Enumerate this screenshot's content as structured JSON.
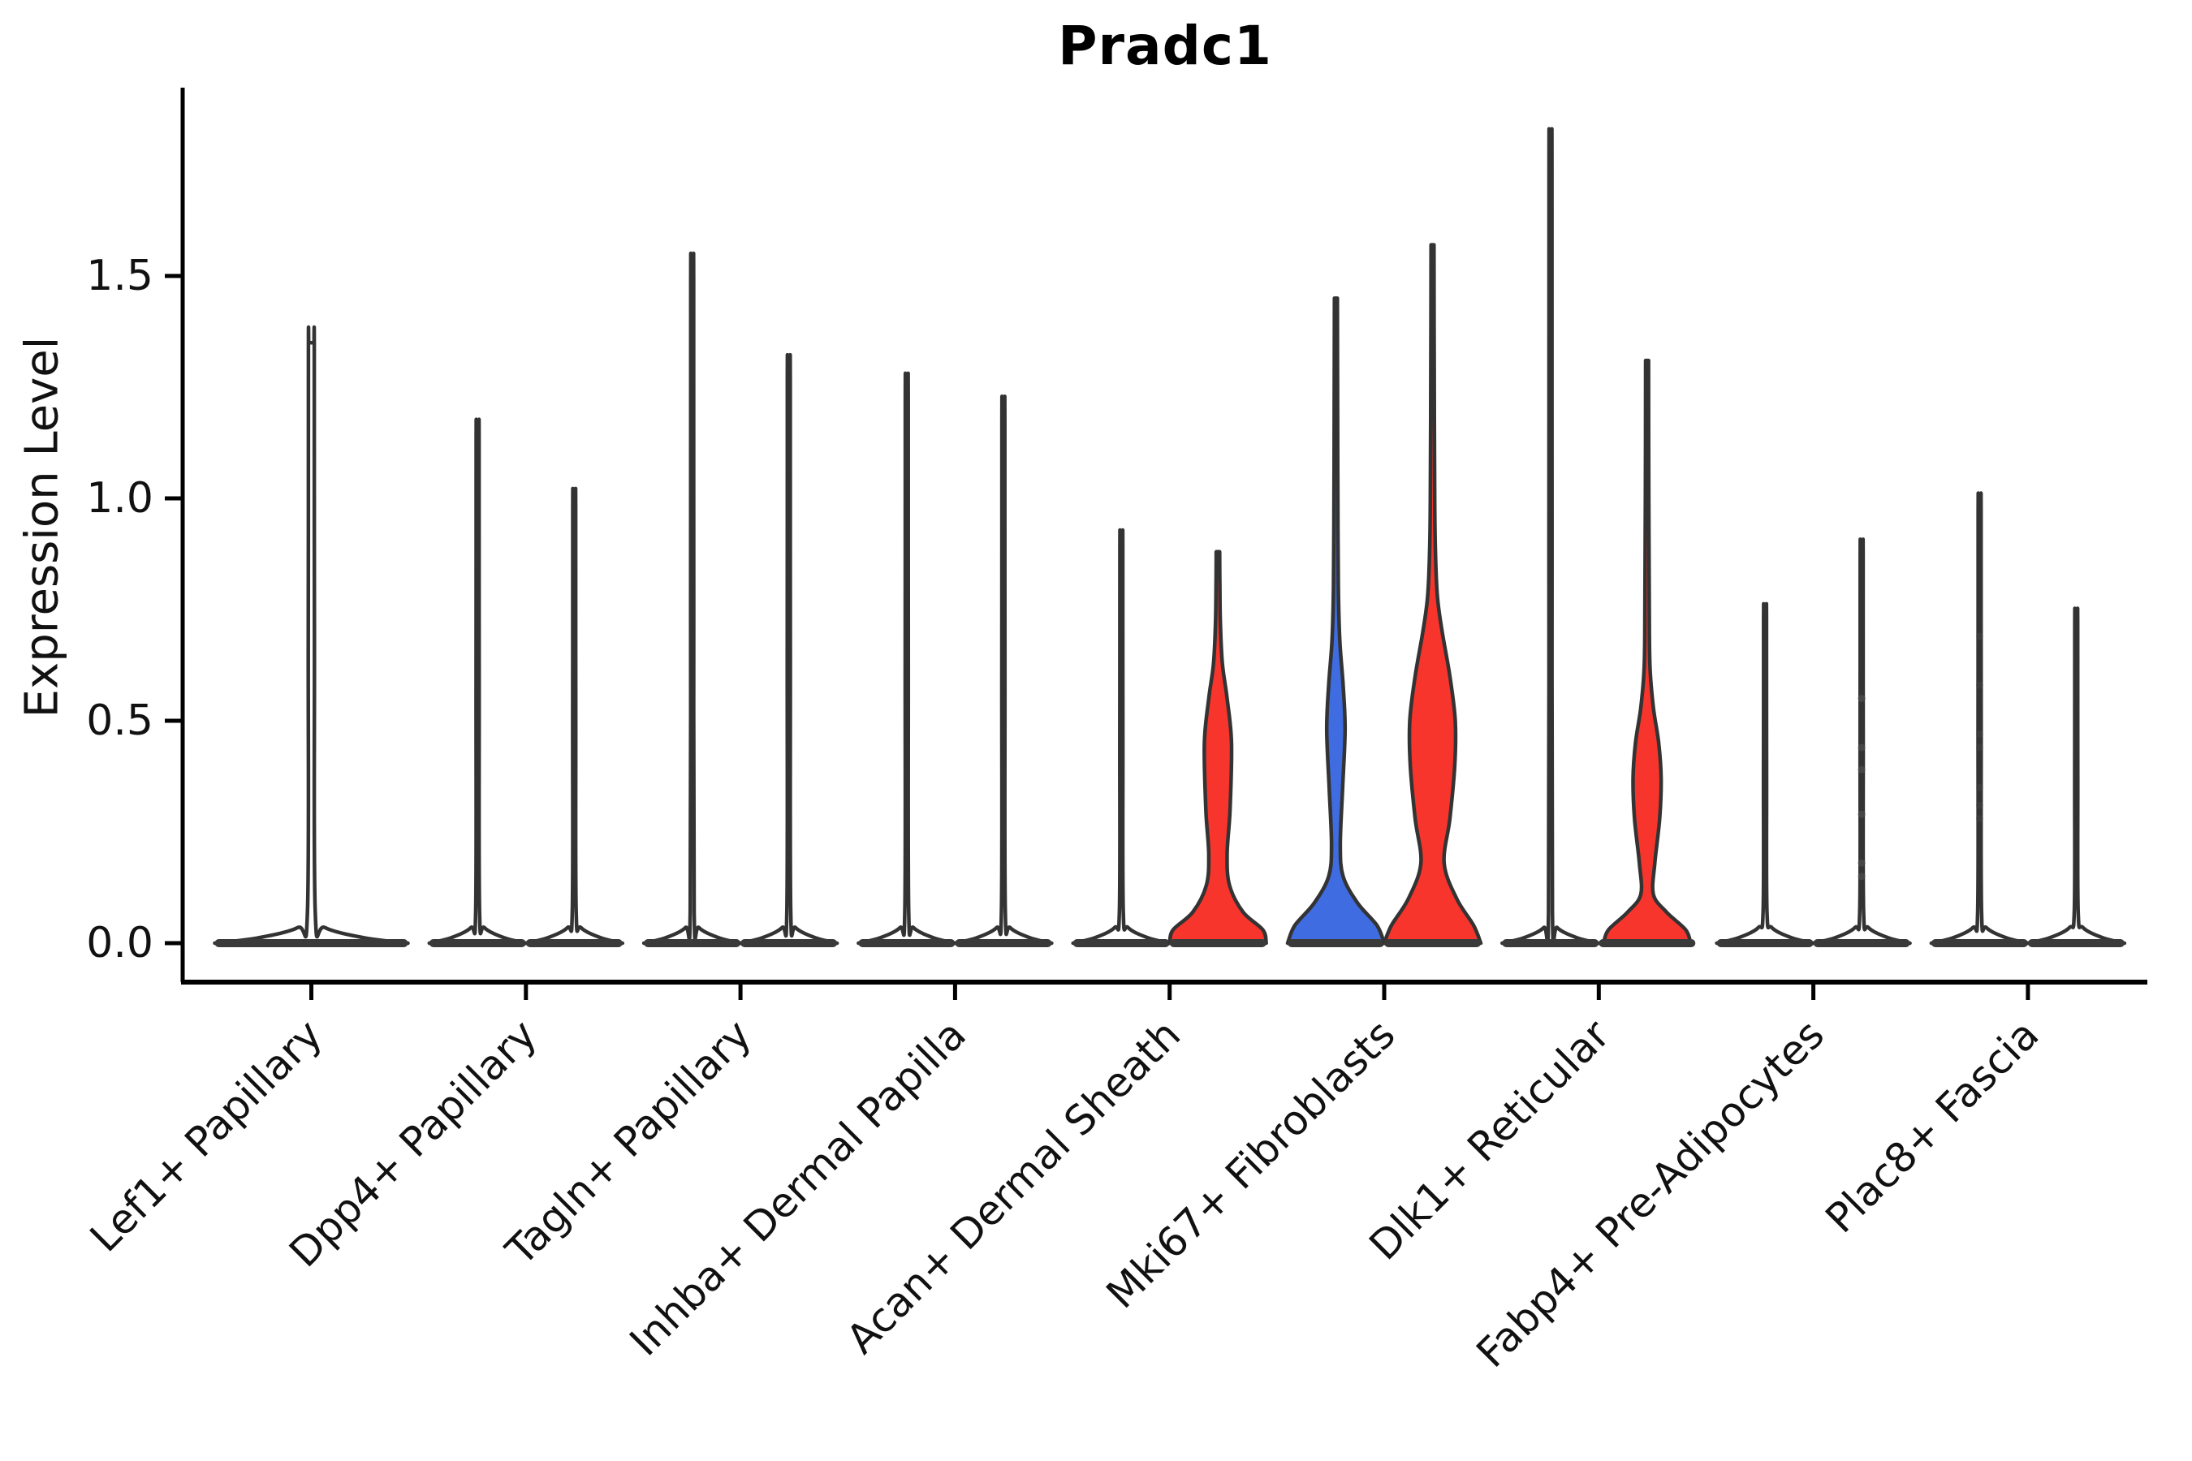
{
  "title": "Pradc1",
  "y_axis": {
    "label": "Expression Level",
    "tick_labels": [
      "0.0",
      "0.5",
      "1.0",
      "1.5"
    ],
    "tick_values": [
      0.0,
      0.5,
      1.0,
      1.5
    ],
    "range": [
      -0.09,
      1.92
    ]
  },
  "colors": {
    "red": "#f8352c",
    "blue": "#3f6ce0",
    "outline": "#333333",
    "base_bar": "#3a3a3a",
    "point": "#4a4a4a",
    "text": "#111111",
    "background": "#ffffff"
  },
  "chart_data": {
    "type": "violin",
    "title": "Pradc1",
    "xlabel": "",
    "ylabel": "Expression Level",
    "ylim": [
      -0.09,
      1.92
    ],
    "yticks": [
      0.0,
      0.5,
      1.0,
      1.5
    ],
    "grid": false,
    "legend": "none",
    "categories": [
      "Lef1+ Papillary",
      "Dpp4+ Papillary",
      "Tagln+ Papillary",
      "Inhba+ Dermal Papilla",
      "Acan+ Dermal Sheath",
      "Mki67+ Fibroblasts",
      "Dlk1+ Reticular",
      "Fabp4+ Pre-Adipocytes",
      "Plac8+ Fascia"
    ],
    "violins": [
      {
        "category": "Lef1+ Papillary",
        "side": "single",
        "fill": "none",
        "max": 1.35
      },
      {
        "category": "Dpp4+ Papillary",
        "side": "left",
        "fill": "none",
        "max": 1.15
      },
      {
        "category": "Dpp4+ Papillary",
        "side": "right",
        "fill": "none",
        "max": 1.0
      },
      {
        "category": "Tagln+ Papillary",
        "side": "left",
        "fill": "none",
        "max": 1.51
      },
      {
        "category": "Tagln+ Papillary",
        "side": "right",
        "fill": "none",
        "max": 1.29
      },
      {
        "category": "Inhba+ Dermal Papilla",
        "side": "left",
        "fill": "none",
        "max": 1.25
      },
      {
        "category": "Inhba+ Dermal Papilla",
        "side": "right",
        "fill": "none",
        "max": 1.2
      },
      {
        "category": "Acan+ Dermal Sheath",
        "side": "left",
        "fill": "none",
        "max": 0.91
      },
      {
        "category": "Acan+ Dermal Sheath",
        "side": "right",
        "fill": "red",
        "max": 0.88,
        "profile": [
          [
            0,
            1
          ],
          [
            0.03,
            0.93
          ],
          [
            0.07,
            0.52
          ],
          [
            0.13,
            0.24
          ],
          [
            0.2,
            0.19
          ],
          [
            0.3,
            0.25
          ],
          [
            0.45,
            0.28
          ],
          [
            0.55,
            0.19
          ],
          [
            0.63,
            0.09
          ],
          [
            0.72,
            0.05
          ],
          [
            0.8,
            0.04
          ],
          [
            0.88,
            0.035
          ]
        ]
      },
      {
        "category": "Mki67+ Fibroblasts",
        "side": "left",
        "fill": "blue",
        "max": 1.45,
        "profile": [
          [
            0,
            1
          ],
          [
            0.04,
            0.85
          ],
          [
            0.09,
            0.45
          ],
          [
            0.15,
            0.15
          ],
          [
            0.22,
            0.09
          ],
          [
            0.35,
            0.14
          ],
          [
            0.48,
            0.19
          ],
          [
            0.58,
            0.15
          ],
          [
            0.68,
            0.08
          ],
          [
            0.8,
            0.05
          ],
          [
            1.0,
            0.04
          ],
          [
            1.2,
            0.035
          ],
          [
            1.45,
            0.03
          ]
        ]
      },
      {
        "category": "Mki67+ Fibroblasts",
        "side": "right",
        "fill": "red",
        "max": 1.57,
        "profile": [
          [
            0,
            1
          ],
          [
            0.04,
            0.85
          ],
          [
            0.1,
            0.5
          ],
          [
            0.18,
            0.24
          ],
          [
            0.28,
            0.36
          ],
          [
            0.4,
            0.46
          ],
          [
            0.5,
            0.47
          ],
          [
            0.6,
            0.36
          ],
          [
            0.7,
            0.2
          ],
          [
            0.78,
            0.1
          ],
          [
            0.88,
            0.06
          ],
          [
            1.0,
            0.045
          ],
          [
            1.3,
            0.035
          ],
          [
            1.57,
            0.03
          ]
        ]
      },
      {
        "category": "Dlk1+ Reticular",
        "side": "left",
        "fill": "none",
        "max": 1.78
      },
      {
        "category": "Dlk1+ Reticular",
        "side": "right",
        "fill": "red",
        "max": 1.31,
        "profile": [
          [
            0,
            0.9
          ],
          [
            0.03,
            0.8
          ],
          [
            0.07,
            0.4
          ],
          [
            0.11,
            0.13
          ],
          [
            0.18,
            0.16
          ],
          [
            0.28,
            0.26
          ],
          [
            0.37,
            0.29
          ],
          [
            0.45,
            0.24
          ],
          [
            0.53,
            0.13
          ],
          [
            0.62,
            0.06
          ],
          [
            0.75,
            0.045
          ],
          [
            1.0,
            0.035
          ],
          [
            1.31,
            0.03
          ]
        ]
      },
      {
        "category": "Fabp4+ Pre-Adipocytes",
        "side": "left",
        "fill": "none",
        "max": 0.75
      },
      {
        "category": "Fabp4+ Pre-Adipocytes",
        "side": "right",
        "fill": "none",
        "max": 0.89
      },
      {
        "category": "Plac8+ Fascia",
        "side": "left",
        "fill": "none",
        "max": 0.99
      },
      {
        "category": "Plac8+ Fascia",
        "side": "right",
        "fill": "none",
        "max": 0.74
      }
    ],
    "jitter_points": [
      {
        "category": "Fabp4+ Pre-Adipocytes",
        "side": "right",
        "opacity": 0.85,
        "values": [
          0.55,
          0.44,
          0.39,
          0.29,
          0.18,
          0.15
        ]
      },
      {
        "category": "Plac8+ Fascia",
        "side": "left",
        "opacity": 0.4,
        "values": [
          0.69,
          0.58,
          0.47,
          0.44,
          0.35,
          0.31,
          0.28
        ]
      }
    ]
  }
}
